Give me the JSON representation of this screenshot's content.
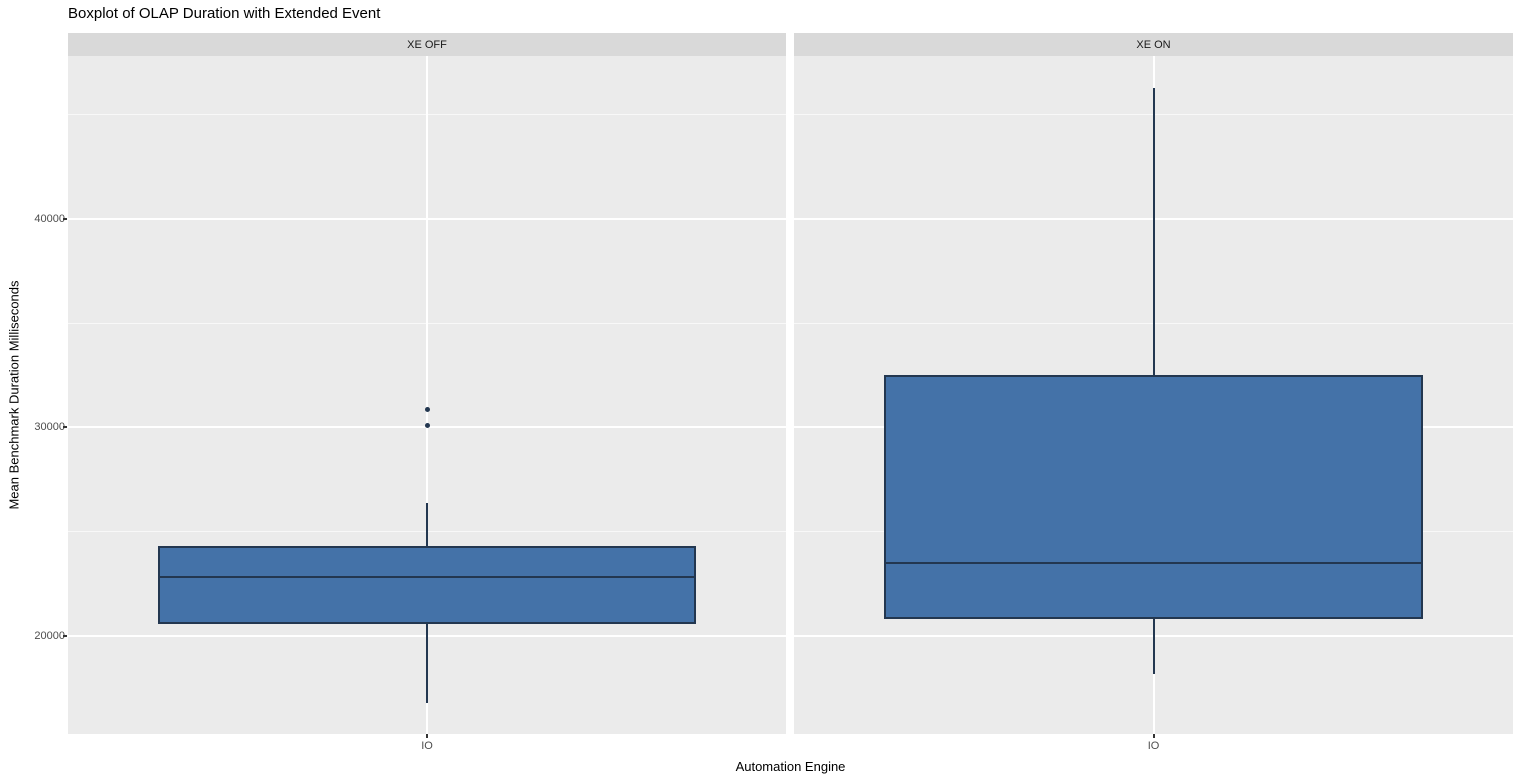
{
  "chart_data": {
    "type": "boxplot",
    "title": "Boxplot of OLAP Duration with Extended Event",
    "xlabel": "Automation Engine",
    "ylabel": "Mean Benchmark Duration Milliseconds",
    "ylim": [
      15270,
      47830
    ],
    "y_major_ticks": [
      20000,
      30000,
      40000
    ],
    "y_minor_ticks": [
      25000,
      35000,
      45000
    ],
    "y_tick_labels": [
      "20000",
      "30000",
      "40000"
    ],
    "grid": true,
    "legend": false,
    "facets": [
      {
        "label": "XE OFF",
        "category": "IO",
        "box": {
          "whisker_low": 16750,
          "q1": 20550,
          "median": 22800,
          "q3": 24300,
          "whisker_high": 26360
        },
        "outliers": [
          30100,
          30830
        ]
      },
      {
        "label": "XE ON",
        "category": "IO",
        "box": {
          "whisker_low": 18150,
          "q1": 20790,
          "median": 23480,
          "q3": 32510,
          "whisker_high": 46290
        },
        "outliers": []
      }
    ],
    "colors": {
      "box_fill": "#4472A8",
      "box_stroke": "#233750",
      "panel_bg": "#EBEBEB",
      "strip_bg": "#D9D9D9",
      "grid_major": "#FFFFFF",
      "axis_text": "#4D4D4D",
      "title_text": "#000000"
    }
  }
}
